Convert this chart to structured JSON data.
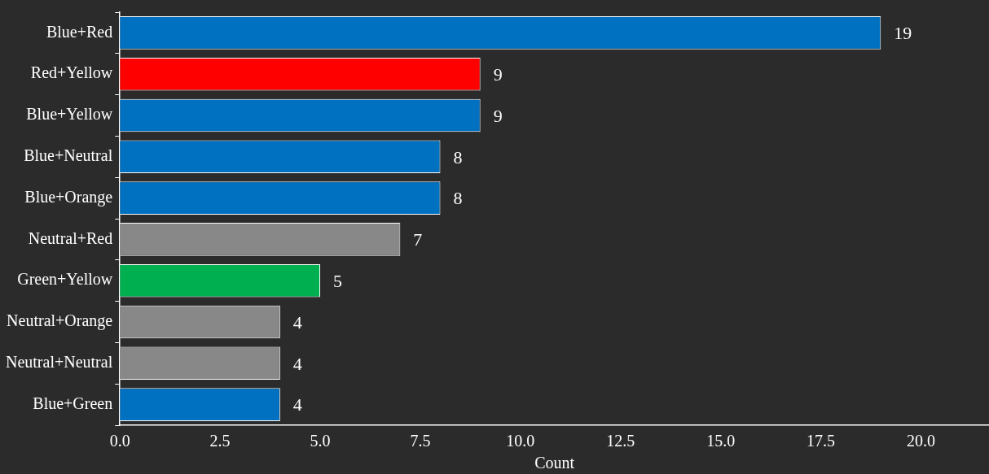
{
  "chart_data": {
    "type": "bar",
    "orientation": "horizontal",
    "xlabel": "Count",
    "categories": [
      "Blue+Red",
      "Red+Yellow",
      "Blue+Yellow",
      "Blue+Neutral",
      "Blue+Orange",
      "Neutral+Red",
      "Green+Yellow",
      "Neutral+Orange",
      "Neutral+Neutral",
      "Blue+Green"
    ],
    "values": [
      19,
      9,
      9,
      8,
      8,
      7,
      5,
      4,
      4,
      4
    ],
    "colors": [
      "#0070c0",
      "#ff0000",
      "#0070c0",
      "#0070c0",
      "#0070c0",
      "#888888",
      "#00b050",
      "#888888",
      "#888888",
      "#0070c0"
    ],
    "xlim": [
      0,
      21.7
    ],
    "xticks": [
      {
        "value": 0,
        "label": "0.0"
      },
      {
        "value": 2.5,
        "label": "2.5"
      },
      {
        "value": 5,
        "label": "5.0"
      },
      {
        "value": 7.5,
        "label": "7.5"
      },
      {
        "value": 10,
        "label": "10.0"
      },
      {
        "value": 12.5,
        "label": "12.5"
      },
      {
        "value": 15,
        "label": "15.0"
      },
      {
        "value": 17.5,
        "label": "17.5"
      },
      {
        "value": 20,
        "label": "20.0"
      }
    ],
    "data_labels": true,
    "grid": false,
    "legend": false
  }
}
